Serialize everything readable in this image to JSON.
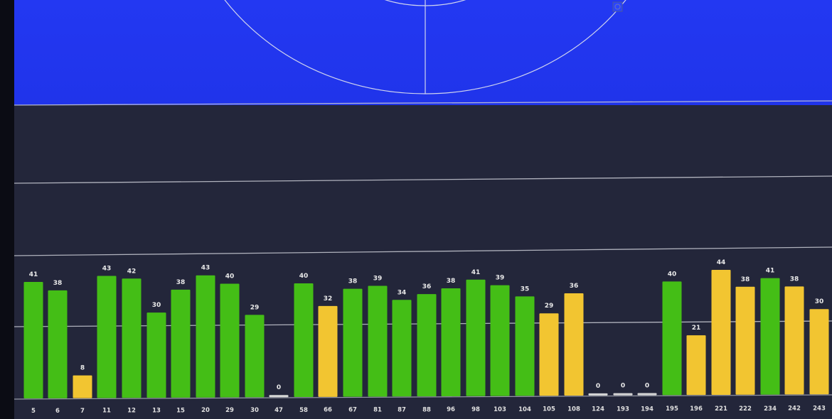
{
  "chart_data": {
    "type": "bar",
    "title": "",
    "xlabel": "",
    "ylabel": "",
    "ylim": [
      0,
      50
    ],
    "grid": true,
    "legend": "none",
    "colors": {
      "good": "#44be16",
      "weak": "#f2c531",
      "empty": "#d8d8d8"
    },
    "categories": [
      "5",
      "6",
      "7",
      "11",
      "12",
      "13",
      "15",
      "20",
      "29",
      "30",
      "47",
      "58",
      "66",
      "67",
      "81",
      "87",
      "88",
      "96",
      "98",
      "103",
      "104",
      "105",
      "108",
      "124",
      "193",
      "194",
      "195",
      "196",
      "221",
      "222",
      "234",
      "242",
      "243"
    ],
    "values": [
      41,
      38,
      8,
      43,
      42,
      30,
      38,
      43,
      40,
      29,
      0,
      40,
      32,
      38,
      39,
      34,
      36,
      38,
      41,
      39,
      35,
      29,
      36,
      0,
      0,
      0,
      40,
      21,
      44,
      38,
      41,
      38,
      30
    ],
    "status": [
      "good",
      "good",
      "weak",
      "good",
      "good",
      "good",
      "good",
      "good",
      "good",
      "good",
      "empty",
      "good",
      "weak",
      "good",
      "good",
      "good",
      "good",
      "good",
      "good",
      "good",
      "good",
      "weak",
      "weak",
      "empty",
      "empty",
      "empty",
      "good",
      "weak",
      "weak",
      "weak",
      "good",
      "weak",
      "weak"
    ]
  }
}
